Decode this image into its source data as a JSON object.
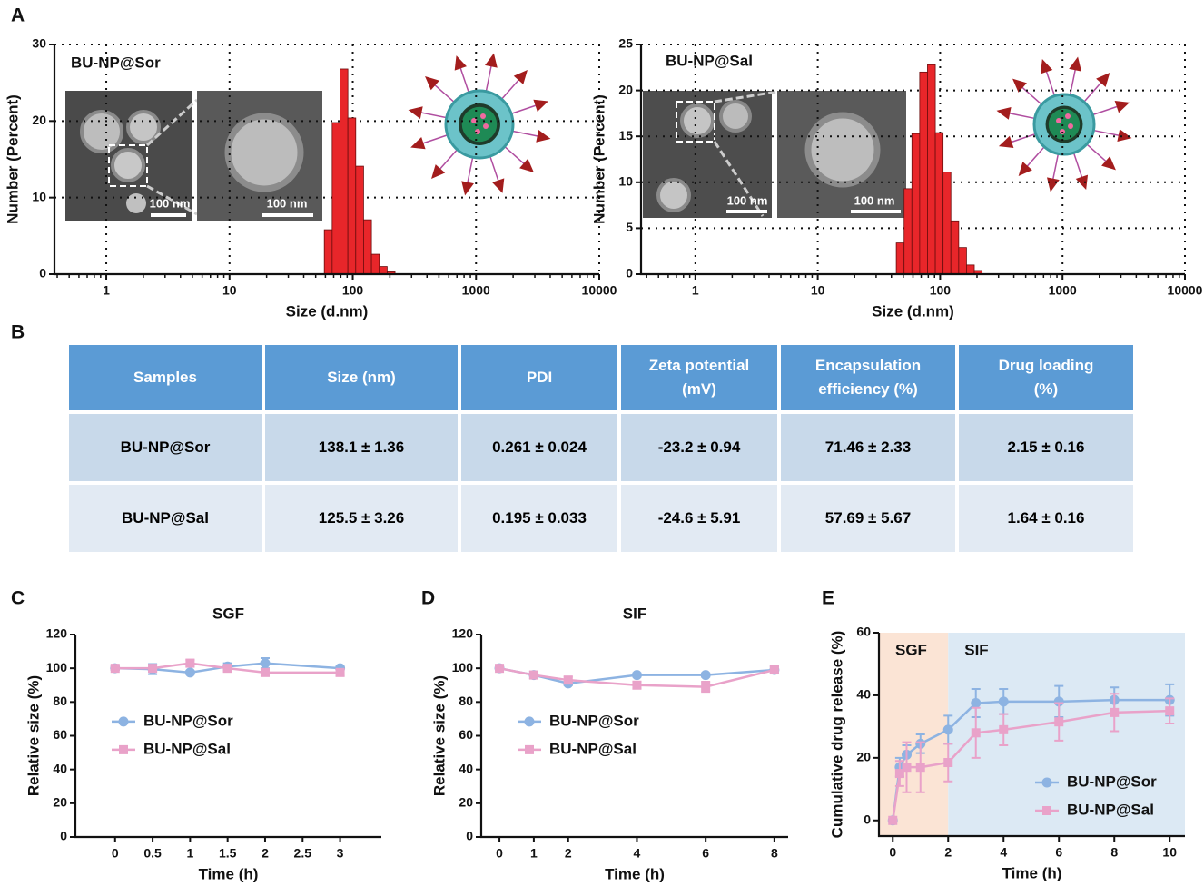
{
  "panels": [
    "A",
    "B",
    "C",
    "D",
    "E"
  ],
  "chart_data": [
    {
      "type": "histogram",
      "label": "BU-NP@Sor",
      "scale_bar_labels": [
        "100 nm",
        "100 nm"
      ],
      "xlabel": "Size (d.nm)",
      "ylabel": "Number (Percent)",
      "xlog": true,
      "grid": "dotted",
      "color": "#e8262a",
      "bins": [
        58.77,
        68.06,
        78.82,
        91.28,
        105.7,
        122.4,
        141.8,
        164.2,
        190.1,
        220.2
      ],
      "values": [
        5.8,
        19.8,
        26.8,
        20.4,
        14.1,
        7.1,
        2.6,
        1.0,
        0.3
      ],
      "xlim": [
        0.38,
        10000
      ],
      "xticks": [
        1,
        10,
        100,
        1000,
        10000
      ],
      "ylim": [
        0,
        30
      ],
      "yticks": [
        0,
        10,
        20,
        30
      ]
    },
    {
      "type": "histogram",
      "label": "BU-NP@Sal",
      "scale_bar_labels": [
        "100 nm",
        "100 nm"
      ],
      "xlabel": "Size (d.nm)",
      "ylabel": "Number (Percent)",
      "xlog": true,
      "grid": "dotted",
      "color": "#e8262a",
      "bins": [
        43.82,
        50.75,
        58.77,
        68.06,
        78.82,
        91.28,
        105.7,
        122.4,
        141.8,
        164.2,
        190.1,
        220.2
      ],
      "values": [
        3.4,
        9.3,
        15.3,
        22.0,
        22.8,
        15.4,
        11.1,
        5.8,
        2.9,
        1.0,
        0.4
      ],
      "xlim": [
        0.36,
        10000
      ],
      "xticks": [
        1,
        10,
        100,
        1000,
        10000
      ],
      "ylim": [
        0,
        25
      ],
      "yticks": [
        0,
        5,
        10,
        15,
        20,
        25
      ]
    },
    {
      "type": "line",
      "title": "SGF",
      "xlabel": "Time (h)",
      "ylabel": "Relative size (%)",
      "legend": "center left",
      "x": [
        0,
        0.5,
        1,
        1.5,
        2,
        3
      ],
      "series": [
        {
          "name": "BU-NP@Sor",
          "color": "#8db3e2",
          "marker": "circle",
          "values": [
            100,
            99.5,
            97.5,
            101,
            103,
            100
          ],
          "errors": [
            1,
            3,
            1,
            2,
            3,
            1
          ]
        },
        {
          "name": "BU-NP@Sal",
          "color": "#e9a2c9",
          "marker": "square",
          "values": [
            100,
            100,
            103,
            100,
            97.5,
            97.5
          ],
          "errors": [
            1,
            2,
            2,
            2,
            2,
            2
          ]
        }
      ],
      "xlim": [
        -0.53,
        3.55
      ],
      "xticks": [
        0,
        0.5,
        1,
        1.5,
        2,
        2.5,
        3
      ],
      "ylim": [
        0,
        120
      ],
      "yticks": [
        0,
        20,
        40,
        60,
        80,
        100,
        120
      ]
    },
    {
      "type": "line",
      "title": "SIF",
      "xlabel": "Time (h)",
      "ylabel": "Relative size (%)",
      "legend": "center left",
      "x": [
        0,
        1,
        2,
        4,
        6,
        8
      ],
      "series": [
        {
          "name": "BU-NP@Sor",
          "color": "#8db3e2",
          "marker": "circle",
          "values": [
            100,
            96,
            91,
            96,
            96,
            99
          ],
          "errors": [
            1,
            2,
            1,
            1,
            1,
            2
          ]
        },
        {
          "name": "BU-NP@Sal",
          "color": "#e9a2c9",
          "marker": "square",
          "values": [
            100,
            96,
            93,
            90,
            89,
            99
          ],
          "errors": [
            1,
            2,
            2,
            2,
            3,
            2
          ]
        }
      ],
      "xlim": [
        -0.53,
        8.4
      ],
      "xticks": [
        0,
        1,
        2,
        4,
        6,
        8
      ],
      "ylim": [
        0,
        120
      ],
      "yticks": [
        0,
        20,
        40,
        60,
        80,
        100,
        120
      ]
    },
    {
      "type": "line",
      "xlabel": "Time (h)",
      "ylabel": "Cumulative drug release (%)",
      "legend": "lower right",
      "regions": [
        {
          "label": "SGF",
          "from": -0.5,
          "to": 2,
          "color": "#fbe4d5"
        },
        {
          "label": "SIF",
          "from": 2,
          "to": 10.55,
          "color": "#dce9f4"
        }
      ],
      "x": [
        0,
        0.25,
        0.5,
        1,
        2,
        3,
        4,
        6,
        8,
        10
      ],
      "series": [
        {
          "name": "BU-NP@Sor",
          "color": "#8db3e2",
          "marker": "circle",
          "values": [
            0,
            17,
            21,
            24.5,
            29,
            37.5,
            38,
            38,
            38.5,
            38.5
          ],
          "errors": [
            0,
            3,
            3,
            3,
            4.5,
            4.5,
            4,
            5,
            4,
            5
          ]
        },
        {
          "name": "BU-NP@Sal",
          "color": "#e9a2c9",
          "marker": "square",
          "values": [
            0,
            15,
            17,
            17,
            18.5,
            28,
            29,
            31.5,
            34.5,
            35
          ],
          "errors": [
            0,
            4,
            8,
            8,
            6,
            8,
            5,
            6,
            6,
            4
          ]
        }
      ],
      "xlim": [
        -0.5,
        10.55
      ],
      "xticks": [
        0,
        2,
        4,
        6,
        8,
        10
      ],
      "ylim": [
        -5,
        60
      ],
      "yticks": [
        0,
        20,
        40,
        60
      ]
    }
  ],
  "table": {
    "header": [
      "Samples",
      "Size (nm)",
      "PDI",
      "Zeta potential (mV)",
      "Encapsulation efficiency (%)",
      "Drug loading (%)"
    ],
    "rows": [
      [
        "BU-NP@Sor",
        "138.1 ± 1.36",
        "0.261 ± 0.024",
        "-23.2 ± 0.94",
        "71.46 ± 2.33",
        "2.15 ± 0.16"
      ],
      [
        "BU-NP@Sal",
        "125.5 ± 3.26",
        "0.195 ± 0.033",
        "-24.6 ± 5.91",
        "57.69 ± 5.67",
        "1.64 ± 0.16"
      ]
    ]
  }
}
